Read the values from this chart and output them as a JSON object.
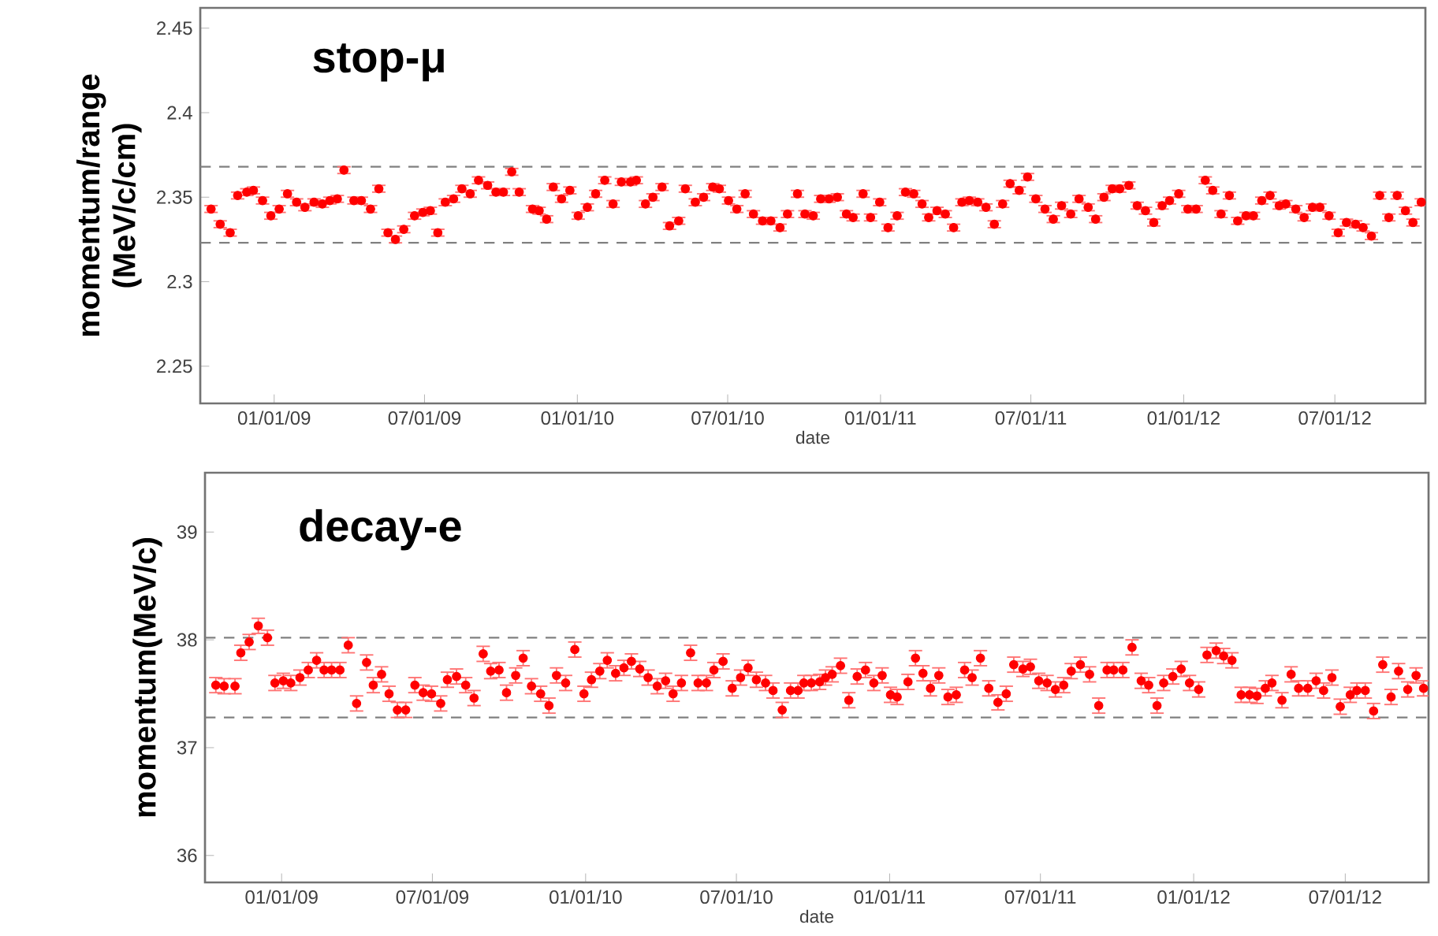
{
  "chart_data": [
    {
      "type": "scatter",
      "title": "stop-μ",
      "xlabel": "date",
      "ylabel": "momentum/range (MeV/c/cm)",
      "color": "#ff0000",
      "marker": "circle",
      "xlim": [
        "2008-10-04",
        "2012-10-18"
      ],
      "ylim": [
        2.228,
        2.462
      ],
      "yticks": [
        2.25,
        2.3,
        2.35,
        2.4,
        2.45
      ],
      "xticks": [
        {
          "value": "2009-01-01",
          "label": "01/01/09"
        },
        {
          "value": "2009-07-01",
          "label": "07/01/09"
        },
        {
          "value": "2010-01-01",
          "label": "01/01/10"
        },
        {
          "value": "2010-07-01",
          "label": "07/01/10"
        },
        {
          "value": "2011-01-01",
          "label": "01/01/11"
        },
        {
          "value": "2011-07-01",
          "label": "07/01/11"
        },
        {
          "value": "2012-01-01",
          "label": "01/01/12"
        },
        {
          "value": "2012-07-01",
          "label": "07/01/12"
        }
      ],
      "ref_lines": [
        {
          "axis": "y",
          "value": 2.368,
          "color": "#808080",
          "line_style": "dashed"
        },
        {
          "axis": "y",
          "value": 2.323,
          "color": "#808080",
          "line_style": "dashed"
        }
      ],
      "x": [
        "2008-10-17",
        "2008-10-28",
        "2008-11-09",
        "2008-11-18",
        "2008-11-29",
        "2008-12-07",
        "2008-12-18",
        "2008-12-28",
        "2009-01-07",
        "2009-01-17",
        "2009-01-28",
        "2009-02-07",
        "2009-02-18",
        "2009-02-28",
        "2009-03-09",
        "2009-03-18",
        "2009-03-26",
        "2009-04-07",
        "2009-04-16",
        "2009-04-27",
        "2009-05-07",
        "2009-05-18",
        "2009-05-27",
        "2009-06-06",
        "2009-06-19",
        "2009-06-29",
        "2009-07-08",
        "2009-07-17",
        "2009-07-26",
        "2009-08-05",
        "2009-08-15",
        "2009-08-25",
        "2009-09-04",
        "2009-09-15",
        "2009-09-25",
        "2009-10-04",
        "2009-10-14",
        "2009-10-23",
        "2009-11-08",
        "2009-11-16",
        "2009-11-25",
        "2009-12-03",
        "2009-12-13",
        "2009-12-23",
        "2010-01-02",
        "2010-01-13",
        "2010-01-23",
        "2010-02-03",
        "2010-02-13",
        "2010-02-23",
        "2010-03-06",
        "2010-03-13",
        "2010-03-24",
        "2010-04-02",
        "2010-04-13",
        "2010-04-22",
        "2010-05-03",
        "2010-05-11",
        "2010-05-23",
        "2010-06-02",
        "2010-06-13",
        "2010-06-21",
        "2010-07-02",
        "2010-07-12",
        "2010-07-22",
        "2010-08-01",
        "2010-08-12",
        "2010-08-22",
        "2010-09-02",
        "2010-09-11",
        "2010-09-23",
        "2010-10-02",
        "2010-10-12",
        "2010-10-21",
        "2010-10-31",
        "2010-11-10",
        "2010-11-21",
        "2010-11-29",
        "2010-12-11",
        "2010-12-20",
        "2010-12-31",
        "2011-01-10",
        "2011-01-21",
        "2011-01-31",
        "2011-02-10",
        "2011-02-20",
        "2011-02-28",
        "2011-03-10",
        "2011-03-20",
        "2011-03-30",
        "2011-04-09",
        "2011-04-18",
        "2011-04-28",
        "2011-05-08",
        "2011-05-18",
        "2011-05-28",
        "2011-06-06",
        "2011-06-17",
        "2011-06-27",
        "2011-07-07",
        "2011-07-18",
        "2011-07-28",
        "2011-08-07",
        "2011-08-18",
        "2011-08-28",
        "2011-09-08",
        "2011-09-17",
        "2011-09-27",
        "2011-10-07",
        "2011-10-16",
        "2011-10-27",
        "2011-11-06",
        "2011-11-16",
        "2011-11-26",
        "2011-12-06",
        "2011-12-15",
        "2011-12-26",
        "2012-01-06",
        "2012-01-16",
        "2012-01-27",
        "2012-02-05",
        "2012-02-15",
        "2012-02-25",
        "2012-03-06",
        "2012-03-16",
        "2012-03-25",
        "2012-04-04",
        "2012-04-14",
        "2012-04-25",
        "2012-05-03",
        "2012-05-15",
        "2012-05-25",
        "2012-06-04",
        "2012-06-13",
        "2012-06-24",
        "2012-07-05",
        "2012-07-15",
        "2012-07-26",
        "2012-08-04",
        "2012-08-14",
        "2012-08-24",
        "2012-09-04",
        "2012-09-14",
        "2012-09-24",
        "2012-10-03",
        "2012-10-13"
      ],
      "values": [
        2.343,
        2.334,
        2.329,
        2.351,
        2.353,
        2.354,
        2.348,
        2.339,
        2.343,
        2.352,
        2.347,
        2.344,
        2.347,
        2.346,
        2.348,
        2.349,
        2.366,
        2.348,
        2.348,
        2.343,
        2.355,
        2.329,
        2.325,
        2.331,
        2.339,
        2.341,
        2.342,
        2.329,
        2.347,
        2.349,
        2.355,
        2.352,
        2.36,
        2.357,
        2.353,
        2.353,
        2.365,
        2.353,
        2.343,
        2.342,
        2.337,
        2.356,
        2.349,
        2.354,
        2.339,
        2.344,
        2.352,
        2.36,
        2.346,
        2.359,
        2.359,
        2.36,
        2.346,
        2.35,
        2.356,
        2.333,
        2.336,
        2.355,
        2.347,
        2.35,
        2.356,
        2.355,
        2.348,
        2.343,
        2.352,
        2.34,
        2.336,
        2.336,
        2.332,
        2.34,
        2.352,
        2.34,
        2.339,
        2.349,
        2.349,
        2.35,
        2.34,
        2.338,
        2.352,
        2.338,
        2.347,
        2.332,
        2.339,
        2.353,
        2.352,
        2.346,
        2.338,
        2.342,
        2.34,
        2.332,
        2.347,
        2.348,
        2.347,
        2.344,
        2.334,
        2.346,
        2.358,
        2.354,
        2.362,
        2.349,
        2.343,
        2.337,
        2.345,
        2.34,
        2.349,
        2.344,
        2.337,
        2.35,
        2.355,
        2.355,
        2.357,
        2.345,
        2.342,
        2.335,
        2.345,
        2.348,
        2.352,
        2.343,
        2.343,
        2.36,
        2.354,
        2.34,
        2.351,
        2.336,
        2.339,
        2.339,
        2.348,
        2.351,
        2.345,
        2.346,
        2.343,
        2.338,
        2.344,
        2.344,
        2.339,
        2.329,
        2.335,
        2.334,
        2.332,
        2.327,
        2.351,
        2.338,
        2.351,
        2.342,
        2.335,
        2.347
      ],
      "errors": [
        0.002,
        0.002,
        0.002,
        0.002,
        0.002,
        0.002,
        0.002,
        0.002,
        0.002,
        0.002,
        0.002,
        0.002,
        0.002,
        0.002,
        0.002,
        0.002,
        0.002,
        0.002,
        0.002,
        0.002,
        0.002,
        0.002,
        0.002,
        0.002,
        0.002,
        0.002,
        0.002,
        0.002,
        0.002,
        0.002,
        0.002,
        0.002,
        0.002,
        0.002,
        0.002,
        0.002,
        0.002,
        0.002,
        0.002,
        0.002,
        0.002,
        0.002,
        0.002,
        0.002,
        0.002,
        0.002,
        0.002,
        0.002,
        0.002,
        0.002,
        0.002,
        0.002,
        0.002,
        0.002,
        0.002,
        0.002,
        0.002,
        0.002,
        0.002,
        0.002,
        0.002,
        0.002,
        0.002,
        0.002,
        0.002,
        0.002,
        0.002,
        0.002,
        0.002,
        0.002,
        0.002,
        0.002,
        0.002,
        0.002,
        0.002,
        0.002,
        0.002,
        0.002,
        0.002,
        0.002,
        0.002,
        0.002,
        0.002,
        0.002,
        0.002,
        0.002,
        0.002,
        0.002,
        0.002,
        0.002,
        0.002,
        0.002,
        0.002,
        0.002,
        0.002,
        0.002,
        0.002,
        0.002,
        0.002,
        0.002,
        0.002,
        0.002,
        0.002,
        0.002,
        0.002,
        0.002,
        0.002,
        0.002,
        0.002,
        0.002,
        0.002,
        0.002,
        0.002,
        0.002,
        0.002,
        0.002,
        0.002,
        0.002,
        0.002,
        0.002,
        0.002,
        0.002,
        0.002,
        0.002,
        0.002,
        0.002,
        0.002,
        0.002,
        0.002,
        0.002,
        0.002,
        0.002,
        0.002,
        0.002,
        0.002,
        0.002,
        0.002,
        0.002,
        0.002,
        0.002,
        0.002,
        0.002,
        0.002,
        0.002,
        0.002,
        0.002
      ]
    },
    {
      "type": "scatter",
      "title": "decay-e",
      "xlabel": "date",
      "ylabel": "momentum(MeV/c)",
      "color": "#ff0000",
      "marker": "circle",
      "xlim": [
        "2008-10-01",
        "2012-10-09"
      ],
      "ylim": [
        35.75,
        39.55
      ],
      "yticks": [
        36,
        37,
        38,
        39
      ],
      "xticks": [
        {
          "value": "2009-01-01",
          "label": "01/01/09"
        },
        {
          "value": "2009-07-01",
          "label": "07/01/09"
        },
        {
          "value": "2010-01-01",
          "label": "01/01/10"
        },
        {
          "value": "2010-07-01",
          "label": "07/01/10"
        },
        {
          "value": "2011-01-01",
          "label": "01/01/11"
        },
        {
          "value": "2011-07-01",
          "label": "07/01/11"
        },
        {
          "value": "2012-01-01",
          "label": "01/01/12"
        },
        {
          "value": "2012-07-01",
          "label": "07/01/12"
        }
      ],
      "ref_lines": [
        {
          "axis": "y",
          "value": 38.02,
          "color": "#808080",
          "line_style": "dashed"
        },
        {
          "axis": "y",
          "value": 37.28,
          "color": "#808080",
          "line_style": "dashed"
        }
      ],
      "x": [
        "2008-10-14",
        "2008-10-24",
        "2008-11-06",
        "2008-11-13",
        "2008-11-23",
        "2008-12-04",
        "2008-12-15",
        "2008-12-24",
        "2009-01-03",
        "2009-01-12",
        "2009-01-23",
        "2009-02-02",
        "2009-02-12",
        "2009-02-21",
        "2009-03-02",
        "2009-03-12",
        "2009-03-22",
        "2009-04-01",
        "2009-04-13",
        "2009-04-21",
        "2009-05-01",
        "2009-05-10",
        "2009-05-20",
        "2009-05-30",
        "2009-06-10",
        "2009-06-20",
        "2009-06-30",
        "2009-07-11",
        "2009-07-19",
        "2009-07-30",
        "2009-08-10",
        "2009-08-20",
        "2009-08-31",
        "2009-09-09",
        "2009-09-19",
        "2009-09-28",
        "2009-10-09",
        "2009-10-18",
        "2009-10-28",
        "2009-11-08",
        "2009-11-18",
        "2009-11-27",
        "2009-12-08",
        "2009-12-19",
        "2009-12-30",
        "2010-01-08",
        "2010-01-18",
        "2010-01-27",
        "2010-02-06",
        "2010-02-16",
        "2010-02-25",
        "2010-03-07",
        "2010-03-17",
        "2010-03-28",
        "2010-04-07",
        "2010-04-16",
        "2010-04-26",
        "2010-05-07",
        "2010-05-16",
        "2010-05-26",
        "2010-06-04",
        "2010-06-15",
        "2010-06-26",
        "2010-07-06",
        "2010-07-15",
        "2010-07-25",
        "2010-08-05",
        "2010-08-14",
        "2010-08-25",
        "2010-09-04",
        "2010-09-13",
        "2010-09-20",
        "2010-09-29",
        "2010-10-09",
        "2010-10-16",
        "2010-10-24",
        "2010-11-03",
        "2010-11-13",
        "2010-11-23",
        "2010-12-03",
        "2010-12-13",
        "2010-12-23",
        "2011-01-02",
        "2011-01-10",
        "2011-01-23",
        "2011-02-01",
        "2011-02-10",
        "2011-02-19",
        "2011-03-01",
        "2011-03-12",
        "2011-03-22",
        "2011-04-01",
        "2011-04-10",
        "2011-04-20",
        "2011-04-30",
        "2011-05-11",
        "2011-05-21",
        "2011-05-30",
        "2011-06-10",
        "2011-06-19",
        "2011-06-29",
        "2011-07-09",
        "2011-07-19",
        "2011-07-29",
        "2011-08-07",
        "2011-08-18",
        "2011-08-29",
        "2011-09-09",
        "2011-09-19",
        "2011-09-27",
        "2011-10-08",
        "2011-10-19",
        "2011-10-30",
        "2011-11-08",
        "2011-11-18",
        "2011-11-26",
        "2011-12-07",
        "2011-12-17",
        "2011-12-27",
        "2012-01-07",
        "2012-01-17",
        "2012-01-28",
        "2012-02-06",
        "2012-02-16",
        "2012-02-27",
        "2012-03-08",
        "2012-03-17",
        "2012-03-27",
        "2012-04-04",
        "2012-04-16",
        "2012-04-27",
        "2012-05-06",
        "2012-05-17",
        "2012-05-27",
        "2012-06-05",
        "2012-06-15",
        "2012-06-25",
        "2012-07-07",
        "2012-07-15",
        "2012-07-25",
        "2012-08-04",
        "2012-08-15",
        "2012-08-25",
        "2012-09-03",
        "2012-09-14",
        "2012-09-24",
        "2012-10-03"
      ],
      "values": [
        37.58,
        37.57,
        37.57,
        37.88,
        37.98,
        38.13,
        38.02,
        37.6,
        37.62,
        37.6,
        37.65,
        37.72,
        37.81,
        37.72,
        37.72,
        37.72,
        37.95,
        37.41,
        37.79,
        37.58,
        37.68,
        37.5,
        37.35,
        37.35,
        37.58,
        37.51,
        37.5,
        37.41,
        37.63,
        37.66,
        37.58,
        37.46,
        37.87,
        37.71,
        37.72,
        37.51,
        37.67,
        37.83,
        37.57,
        37.5,
        37.39,
        37.67,
        37.6,
        37.91,
        37.5,
        37.63,
        37.71,
        37.81,
        37.69,
        37.74,
        37.8,
        37.73,
        37.65,
        37.57,
        37.62,
        37.5,
        37.6,
        37.88,
        37.6,
        37.6,
        37.72,
        37.8,
        37.55,
        37.65,
        37.74,
        37.63,
        37.6,
        37.53,
        37.35,
        37.53,
        37.53,
        37.6,
        37.6,
        37.61,
        37.65,
        37.68,
        37.76,
        37.44,
        37.66,
        37.72,
        37.6,
        37.67,
        37.49,
        37.47,
        37.61,
        37.83,
        37.69,
        37.55,
        37.67,
        37.47,
        37.49,
        37.72,
        37.65,
        37.83,
        37.55,
        37.42,
        37.5,
        37.77,
        37.73,
        37.75,
        37.62,
        37.6,
        37.54,
        37.58,
        37.71,
        37.77,
        37.68,
        37.39,
        37.72,
        37.72,
        37.72,
        37.93,
        37.62,
        37.58,
        37.39,
        37.6,
        37.66,
        37.73,
        37.6,
        37.54,
        37.86,
        37.9,
        37.85,
        37.81,
        37.49,
        37.49,
        37.48,
        37.55,
        37.6,
        37.44,
        37.68,
        37.55,
        37.55,
        37.62,
        37.53,
        37.65,
        37.38,
        37.49,
        37.53,
        37.53,
        37.34,
        37.77,
        37.47,
        37.71,
        37.54,
        37.67,
        37.55
      ],
      "errors": [
        0.07,
        0.07,
        0.07,
        0.07,
        0.07,
        0.07,
        0.07,
        0.07,
        0.07,
        0.07,
        0.07,
        0.07,
        0.07,
        0.07,
        0.07,
        0.07,
        0.07,
        0.07,
        0.07,
        0.07,
        0.07,
        0.07,
        0.07,
        0.07,
        0.07,
        0.07,
        0.07,
        0.07,
        0.07,
        0.07,
        0.07,
        0.07,
        0.07,
        0.07,
        0.07,
        0.07,
        0.07,
        0.07,
        0.07,
        0.07,
        0.07,
        0.07,
        0.07,
        0.07,
        0.07,
        0.07,
        0.07,
        0.07,
        0.07,
        0.07,
        0.07,
        0.07,
        0.07,
        0.07,
        0.07,
        0.07,
        0.07,
        0.07,
        0.07,
        0.07,
        0.07,
        0.07,
        0.07,
        0.07,
        0.07,
        0.07,
        0.07,
        0.07,
        0.07,
        0.07,
        0.07,
        0.07,
        0.07,
        0.07,
        0.07,
        0.07,
        0.07,
        0.07,
        0.07,
        0.07,
        0.07,
        0.07,
        0.07,
        0.07,
        0.07,
        0.07,
        0.07,
        0.07,
        0.07,
        0.07,
        0.07,
        0.07,
        0.07,
        0.07,
        0.07,
        0.07,
        0.07,
        0.07,
        0.07,
        0.07,
        0.07,
        0.07,
        0.07,
        0.07,
        0.07,
        0.07,
        0.07,
        0.07,
        0.07,
        0.07,
        0.07,
        0.07,
        0.07,
        0.07,
        0.07,
        0.07,
        0.07,
        0.07,
        0.07,
        0.07,
        0.07,
        0.07,
        0.07,
        0.07,
        0.07,
        0.07,
        0.07,
        0.07,
        0.07,
        0.07,
        0.07,
        0.07,
        0.07,
        0.07,
        0.07,
        0.07,
        0.07,
        0.07,
        0.07,
        0.07,
        0.07,
        0.07,
        0.07,
        0.07,
        0.07,
        0.07,
        0.07
      ]
    }
  ]
}
